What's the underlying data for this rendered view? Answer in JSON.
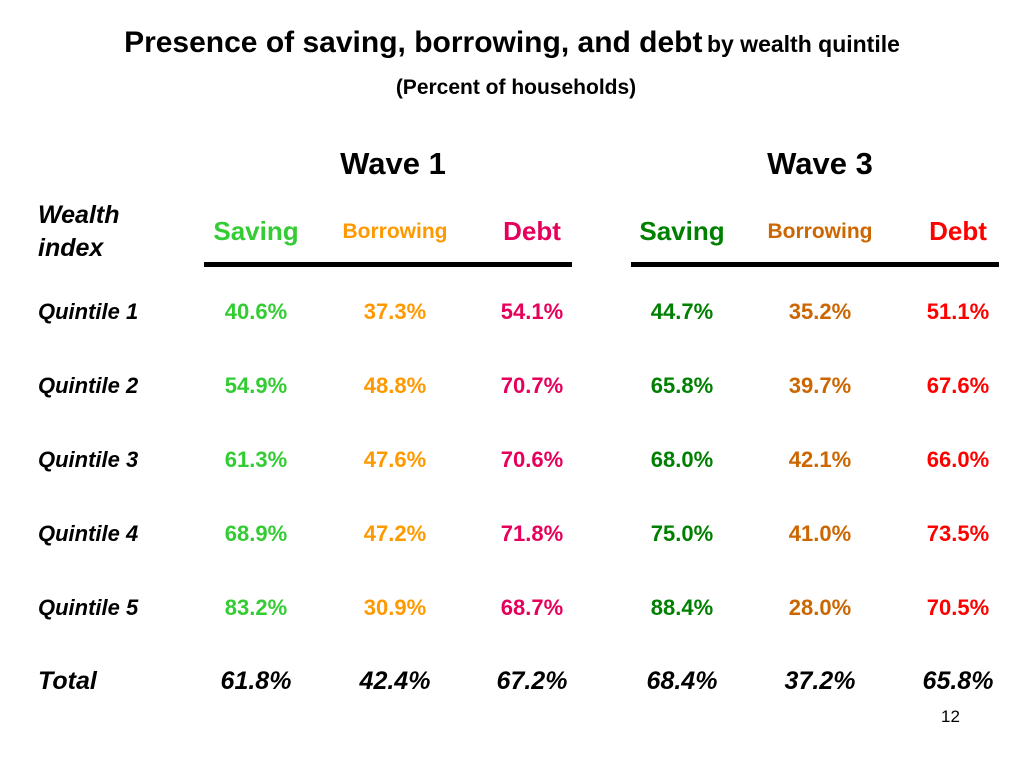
{
  "title": {
    "main": "Presence of saving, borrowing, and debt",
    "suffix": "by wealth quintile",
    "subtitle": "(Percent of households)"
  },
  "waves": [
    "Wave 1",
    "Wave 3"
  ],
  "row_header": [
    "Wealth",
    "index"
  ],
  "columns": [
    {
      "label": "Saving",
      "color": "#33cc33"
    },
    {
      "label": "Borrowing",
      "color": "#ff9900"
    },
    {
      "label": "Debt",
      "color": "#e6005c"
    },
    {
      "label": "Saving",
      "color": "#008000"
    },
    {
      "label": "Borrowing",
      "color": "#cc6600"
    },
    {
      "label": "Debt",
      "color": "#ff0000"
    }
  ],
  "rows": [
    {
      "label": "Quintile 1",
      "values": [
        "40.6%",
        "37.3%",
        "54.1%",
        "44.7%",
        "35.2%",
        "51.1%"
      ]
    },
    {
      "label": "Quintile 2",
      "values": [
        "54.9%",
        "48.8%",
        "70.7%",
        "65.8%",
        "39.7%",
        "67.6%"
      ]
    },
    {
      "label": "Quintile 3",
      "values": [
        "61.3%",
        "47.6%",
        "70.6%",
        "68.0%",
        "42.1%",
        "66.0%"
      ]
    },
    {
      "label": "Quintile 4",
      "values": [
        "68.9%",
        "47.2%",
        "71.8%",
        "75.0%",
        "41.0%",
        "73.5%"
      ]
    },
    {
      "label": "Quintile 5",
      "values": [
        "83.2%",
        "30.9%",
        "68.7%",
        "88.4%",
        "28.0%",
        "70.5%"
      ]
    }
  ],
  "total": {
    "label": "Total",
    "values": [
      "61.8%",
      "42.4%",
      "67.2%",
      "68.4%",
      "37.2%",
      "65.8%"
    ]
  },
  "page_number": "12"
}
